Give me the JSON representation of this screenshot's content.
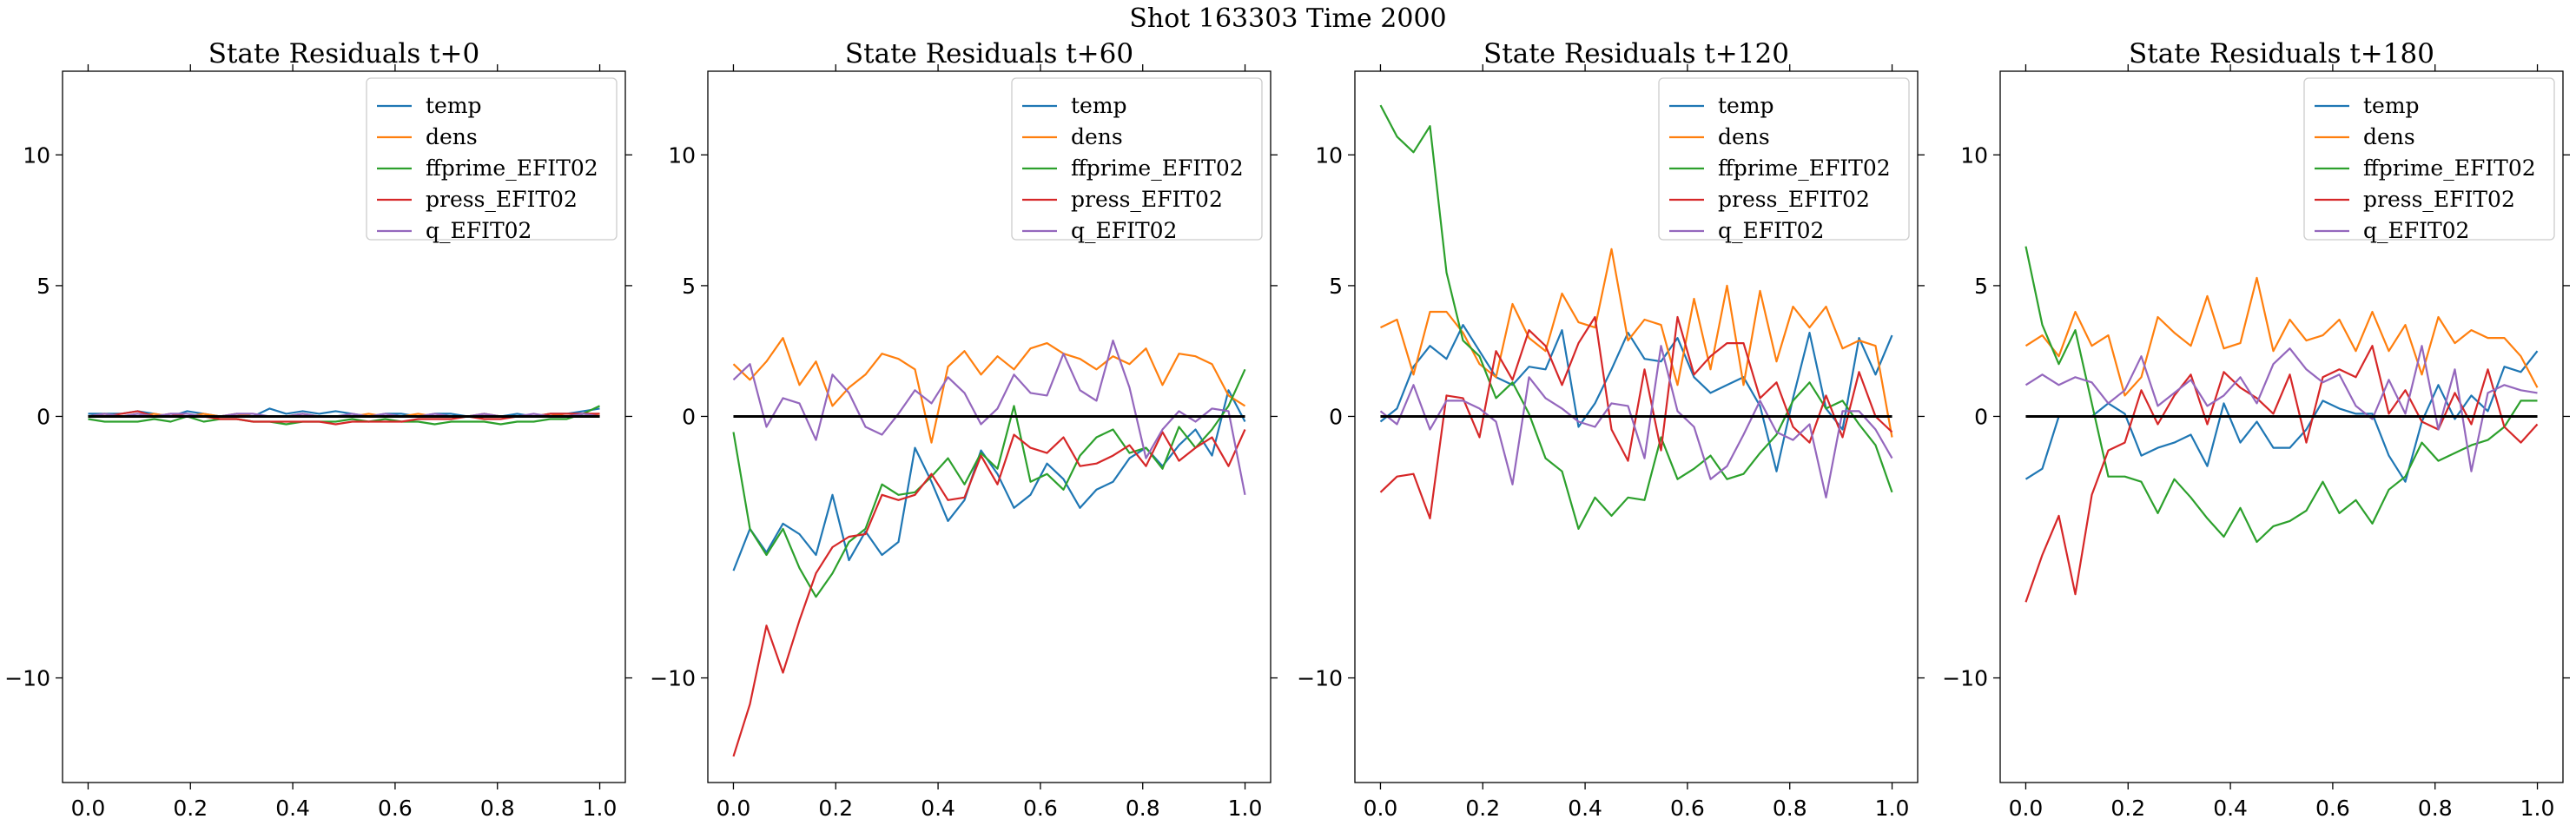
{
  "figure": {
    "title": "Shot 163303   Time 2000"
  },
  "chart_data": [
    {
      "type": "line",
      "title": "State Residuals t+0",
      "xlim": [
        -0.05,
        1.05
      ],
      "ylim": [
        -14,
        13.2
      ],
      "xticks": [
        "0.0",
        "0.2",
        "0.4",
        "0.6",
        "0.8",
        "1.0"
      ],
      "yticks": [
        "10",
        "5",
        "0",
        "−10"
      ],
      "ytick_values": [
        10,
        5,
        0,
        -10
      ],
      "xtick_values": [
        0,
        0.2,
        0.4,
        0.6,
        0.8,
        1.0
      ],
      "grid": false,
      "legend_position": "upper-right",
      "zero_line": true,
      "series": [
        {
          "name": "temp",
          "color": "#1f77b4",
          "values": [
            0.1,
            0.1,
            0.1,
            0.2,
            0.1,
            0.0,
            0.2,
            0.1,
            0.0,
            0.1,
            0.0,
            0.3,
            0.1,
            0.2,
            0.1,
            0.2,
            0.1,
            0.0,
            0.1,
            0.1,
            0.0,
            0.1,
            0.1,
            0.0,
            0.1,
            0.0,
            0.1,
            0.0,
            0.1,
            0.1,
            0.2,
            0.3
          ]
        },
        {
          "name": "dens",
          "color": "#ff7f0e",
          "values": [
            0.0,
            0.1,
            0.0,
            0.0,
            0.1,
            0.0,
            0.0,
            0.1,
            0.0,
            0.1,
            0.0,
            0.0,
            0.0,
            0.1,
            0.0,
            0.0,
            0.0,
            0.1,
            0.0,
            0.0,
            0.1,
            0.0,
            0.0,
            0.0,
            0.1,
            0.0,
            0.0,
            0.0,
            0.1,
            0.0,
            0.0,
            0.1
          ]
        },
        {
          "name": "ffprime_EFIT02",
          "color": "#2ca02c",
          "values": [
            -0.1,
            -0.2,
            -0.2,
            -0.2,
            -0.1,
            -0.2,
            0.0,
            -0.2,
            -0.1,
            -0.1,
            -0.2,
            -0.2,
            -0.3,
            -0.2,
            -0.2,
            -0.2,
            -0.1,
            -0.2,
            -0.1,
            -0.2,
            -0.2,
            -0.3,
            -0.2,
            -0.2,
            -0.2,
            -0.3,
            -0.2,
            -0.2,
            -0.1,
            -0.1,
            0.1,
            0.4
          ]
        },
        {
          "name": "press_EFIT02",
          "color": "#d62728",
          "values": [
            0.0,
            0.0,
            0.1,
            0.2,
            0.0,
            0.1,
            0.0,
            0.0,
            -0.1,
            -0.1,
            -0.2,
            -0.2,
            -0.2,
            -0.2,
            -0.2,
            -0.3,
            -0.2,
            -0.2,
            -0.2,
            -0.2,
            -0.1,
            -0.1,
            -0.1,
            0.0,
            -0.1,
            -0.1,
            0.0,
            0.0,
            0.1,
            0.1,
            0.1,
            0.1
          ]
        },
        {
          "name": "q_EFIT02",
          "color": "#9467bd",
          "values": [
            0.0,
            0.1,
            0.0,
            0.1,
            0.0,
            0.1,
            0.1,
            0.0,
            0.0,
            0.1,
            0.1,
            0.0,
            0.0,
            0.1,
            0.0,
            0.0,
            0.1,
            0.0,
            0.1,
            0.0,
            0.0,
            0.1,
            0.0,
            0.0,
            0.1,
            0.0,
            0.0,
            0.1,
            0.0,
            0.0,
            0.1,
            0.0
          ]
        }
      ]
    },
    {
      "type": "line",
      "title": "State Residuals t+60",
      "xlim": [
        -0.05,
        1.05
      ],
      "ylim": [
        -14,
        13.2
      ],
      "xticks": [
        "0.0",
        "0.2",
        "0.4",
        "0.6",
        "0.8",
        "1.0"
      ],
      "yticks": [
        "10",
        "5",
        "0",
        "−10"
      ],
      "ytick_values": [
        10,
        5,
        0,
        -10
      ],
      "xtick_values": [
        0,
        0.2,
        0.4,
        0.6,
        0.8,
        1.0
      ],
      "grid": false,
      "legend_position": "upper-right",
      "zero_line": true,
      "series": [
        {
          "name": "temp",
          "color": "#1f77b4",
          "values": [
            -5.9,
            -4.3,
            -5.2,
            -4.1,
            -4.5,
            -5.3,
            -3.0,
            -5.5,
            -4.4,
            -5.3,
            -4.8,
            -1.2,
            -2.5,
            -4.0,
            -3.2,
            -1.3,
            -2.2,
            -3.5,
            -3.0,
            -1.8,
            -2.4,
            -3.5,
            -2.8,
            -2.5,
            -1.6,
            -1.2,
            -1.9,
            -1.1,
            -0.5,
            -1.5,
            1.0,
            -0.2
          ]
        },
        {
          "name": "dens",
          "color": "#ff7f0e",
          "values": [
            2.0,
            1.4,
            2.1,
            3.0,
            1.2,
            2.1,
            0.4,
            1.1,
            1.6,
            2.4,
            2.2,
            1.8,
            -1.0,
            1.9,
            2.5,
            1.6,
            2.3,
            1.8,
            2.6,
            2.8,
            2.4,
            2.2,
            1.8,
            2.3,
            2.0,
            2.6,
            1.2,
            2.4,
            2.3,
            2.0,
            0.8,
            0.4
          ]
        },
        {
          "name": "ffprime_EFIT02",
          "color": "#2ca02c",
          "values": [
            -0.6,
            -4.3,
            -5.3,
            -4.3,
            -5.8,
            -6.9,
            -6.0,
            -4.8,
            -4.3,
            -2.6,
            -3.0,
            -2.9,
            -2.3,
            -1.6,
            -2.6,
            -1.4,
            -2.0,
            0.4,
            -2.5,
            -2.2,
            -2.8,
            -1.5,
            -0.8,
            -0.5,
            -1.4,
            -1.2,
            -2.0,
            -0.4,
            -1.2,
            -0.5,
            0.4,
            1.8
          ]
        },
        {
          "name": "press_EFIT02",
          "color": "#d62728",
          "values": [
            -13.0,
            -11.0,
            -8.0,
            -9.8,
            -7.8,
            -6.0,
            -5.0,
            -4.6,
            -4.5,
            -3.0,
            -3.2,
            -3.0,
            -2.2,
            -3.2,
            -3.1,
            -1.5,
            -2.6,
            -0.7,
            -1.2,
            -1.4,
            -0.8,
            -1.9,
            -1.8,
            -1.5,
            -1.1,
            -1.9,
            -0.6,
            -1.7,
            -1.2,
            -0.8,
            -1.9,
            -0.5
          ]
        },
        {
          "name": "q_EFIT02",
          "color": "#9467bd",
          "values": [
            1.4,
            2.0,
            -0.4,
            0.7,
            0.5,
            -0.9,
            1.6,
            0.9,
            -0.4,
            -0.7,
            0.1,
            1.0,
            0.5,
            1.5,
            0.9,
            -0.3,
            0.3,
            1.6,
            0.9,
            0.8,
            2.4,
            1.0,
            0.6,
            2.9,
            1.1,
            -1.6,
            -0.5,
            0.2,
            -0.2,
            0.3,
            0.2,
            -3.0
          ]
        }
      ]
    },
    {
      "type": "line",
      "title": "State Residuals t+120",
      "xlim": [
        -0.05,
        1.05
      ],
      "ylim": [
        -14,
        13.2
      ],
      "xticks": [
        "0.0",
        "0.2",
        "0.4",
        "0.6",
        "0.8",
        "1.0"
      ],
      "yticks": [
        "10",
        "5",
        "0",
        "−10"
      ],
      "ytick_values": [
        10,
        5,
        0,
        -10
      ],
      "xtick_values": [
        0,
        0.2,
        0.4,
        0.6,
        0.8,
        1.0
      ],
      "grid": false,
      "legend_position": "upper-right",
      "zero_line": true,
      "series": [
        {
          "name": "temp",
          "color": "#1f77b4",
          "values": [
            -0.2,
            0.3,
            1.9,
            2.7,
            2.2,
            3.5,
            2.5,
            1.5,
            1.2,
            1.9,
            1.8,
            3.3,
            -0.4,
            0.5,
            1.8,
            3.2,
            2.2,
            2.1,
            3.0,
            1.5,
            0.9,
            1.2,
            1.5,
            0.4,
            -2.1,
            0.7,
            3.2,
            0.3,
            -0.5,
            3.0,
            1.6,
            3.1
          ]
        },
        {
          "name": "dens",
          "color": "#ff7f0e",
          "values": [
            3.4,
            3.7,
            1.6,
            4.0,
            4.0,
            3.2,
            2.0,
            1.5,
            4.3,
            3.0,
            2.5,
            4.7,
            3.6,
            3.4,
            6.4,
            2.9,
            3.7,
            3.5,
            1.2,
            4.5,
            1.8,
            5.0,
            1.2,
            4.8,
            2.1,
            4.2,
            3.4,
            4.2,
            2.6,
            2.9,
            2.7,
            -0.8
          ]
        },
        {
          "name": "ffprime_EFIT02",
          "color": "#2ca02c",
          "values": [
            11.9,
            10.7,
            10.1,
            11.1,
            5.5,
            2.9,
            2.3,
            0.7,
            1.3,
            0.1,
            -1.6,
            -2.1,
            -4.3,
            -3.1,
            -3.8,
            -3.1,
            -3.2,
            -0.8,
            -2.4,
            -2.0,
            -1.5,
            -2.4,
            -2.2,
            -1.4,
            -0.7,
            0.6,
            1.3,
            0.3,
            0.6,
            -0.3,
            -1.1,
            -2.9
          ]
        },
        {
          "name": "press_EFIT02",
          "color": "#d62728",
          "values": [
            -2.9,
            -2.3,
            -2.2,
            -3.9,
            0.8,
            0.7,
            -0.8,
            2.5,
            1.4,
            3.3,
            2.7,
            1.2,
            2.8,
            3.8,
            -0.5,
            -1.7,
            1.8,
            -1.3,
            3.8,
            1.6,
            2.3,
            2.8,
            2.8,
            0.7,
            1.3,
            -0.4,
            -1.0,
            0.8,
            -0.8,
            1.7,
            0.0,
            -0.6
          ]
        },
        {
          "name": "q_EFIT02",
          "color": "#9467bd",
          "values": [
            0.2,
            -0.3,
            1.2,
            -0.5,
            0.6,
            0.6,
            0.3,
            -0.2,
            -2.6,
            1.5,
            0.7,
            0.3,
            -0.2,
            -0.4,
            0.5,
            0.4,
            -1.6,
            2.7,
            0.2,
            -0.4,
            -2.4,
            -1.9,
            -0.7,
            0.6,
            -0.6,
            -0.9,
            -0.3,
            -3.1,
            0.2,
            0.2,
            -0.5,
            -1.6
          ]
        }
      ]
    },
    {
      "type": "line",
      "title": "State Residuals t+180",
      "xlim": [
        -0.05,
        1.05
      ],
      "ylim": [
        -14,
        13.2
      ],
      "xticks": [
        "0.0",
        "0.2",
        "0.4",
        "0.6",
        "0.8",
        "1.0"
      ],
      "yticks": [
        "10",
        "5",
        "0",
        "−10"
      ],
      "ytick_values": [
        10,
        5,
        0,
        -10
      ],
      "xtick_values": [
        0,
        0.2,
        0.4,
        0.6,
        0.8,
        1.0
      ],
      "grid": false,
      "legend_position": "upper-right",
      "zero_line": true,
      "series": [
        {
          "name": "temp",
          "color": "#1f77b4",
          "values": [
            -2.4,
            -2.0,
            0.0,
            0.0,
            0.0,
            0.5,
            0.1,
            -1.5,
            -1.2,
            -1.0,
            -0.7,
            -1.9,
            0.5,
            -1.0,
            -0.2,
            -1.2,
            -1.2,
            -0.5,
            0.6,
            0.3,
            0.1,
            0.1,
            -1.5,
            -2.5,
            -0.2,
            1.2,
            -0.1,
            0.8,
            0.2,
            1.9,
            1.7,
            2.5
          ]
        },
        {
          "name": "dens",
          "color": "#ff7f0e",
          "values": [
            2.7,
            3.1,
            2.3,
            4.0,
            2.7,
            3.1,
            0.8,
            1.5,
            3.8,
            3.2,
            2.7,
            4.6,
            2.6,
            2.8,
            5.3,
            2.5,
            3.7,
            2.9,
            3.1,
            3.7,
            2.5,
            4.0,
            2.5,
            3.5,
            1.6,
            3.8,
            2.8,
            3.3,
            3.0,
            3.0,
            2.3,
            1.1
          ]
        },
        {
          "name": "ffprime_EFIT02",
          "color": "#2ca02c",
          "values": [
            6.5,
            3.5,
            2.0,
            3.3,
            0.5,
            -2.3,
            -2.3,
            -2.5,
            -3.7,
            -2.4,
            -3.1,
            -3.9,
            -4.6,
            -3.5,
            -4.8,
            -4.2,
            -4.0,
            -3.6,
            -2.5,
            -3.7,
            -3.2,
            -4.1,
            -2.8,
            -2.3,
            -1.0,
            -1.7,
            -1.4,
            -1.1,
            -0.9,
            -0.4,
            0.6,
            0.6
          ]
        },
        {
          "name": "press_EFIT02",
          "color": "#d62728",
          "values": [
            -7.1,
            -5.3,
            -3.8,
            -6.8,
            -3.0,
            -1.3,
            -1.0,
            1.0,
            -0.3,
            0.8,
            1.6,
            -0.3,
            1.7,
            1.1,
            0.7,
            0.1,
            1.6,
            -1.0,
            1.5,
            1.8,
            1.5,
            2.7,
            0.1,
            1.0,
            -0.2,
            -0.5,
            0.9,
            -0.3,
            1.8,
            -0.4,
            -1.0,
            -0.3
          ]
        },
        {
          "name": "q_EFIT02",
          "color": "#9467bd",
          "values": [
            1.2,
            1.6,
            1.2,
            1.5,
            1.3,
            0.5,
            1.0,
            2.3,
            0.4,
            0.9,
            1.4,
            0.4,
            0.8,
            1.5,
            0.5,
            2.0,
            2.6,
            1.8,
            1.3,
            1.6,
            0.4,
            -0.1,
            1.4,
            0.1,
            2.7,
            -0.5,
            1.8,
            -2.1,
            0.9,
            1.2,
            1.0,
            0.9
          ]
        }
      ]
    }
  ]
}
